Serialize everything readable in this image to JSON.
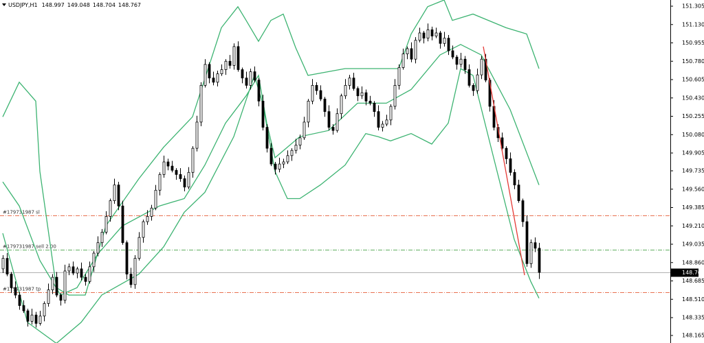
{
  "chart_data": {
    "type": "candlestick",
    "symbol": "USDJPY,H1",
    "ylim": [
      148.093,
      151.364
    ],
    "yticks": [
      151.305,
      {
        "value": 151.13,
        "label": "151.130"
      },
      150.955,
      {
        "value": 150.78,
        "label": "150.780"
      },
      150.605,
      {
        "value": 150.43,
        "label": "150.430"
      },
      150.255,
      {
        "value": 150.08,
        "label": "150.080"
      },
      149.905,
      149.735,
      {
        "value": 149.56,
        "label": "149.560"
      },
      149.385,
      {
        "value": 149.21,
        "label": "149.210"
      },
      149.035,
      {
        "value": 148.86,
        "label": "148.860"
      },
      148.685,
      {
        "value": 148.51,
        "label": "148.510"
      },
      148.335,
      148.165
    ],
    "ohlc": [
      [
        148.8,
        148.93,
        148.76,
        148.9
      ],
      [
        148.9,
        148.95,
        148.73,
        148.75
      ],
      [
        148.75,
        148.77,
        148.57,
        148.62
      ],
      [
        148.62,
        148.68,
        148.52,
        148.55
      ],
      [
        148.55,
        148.58,
        148.41,
        148.45
      ],
      [
        148.45,
        148.5,
        148.38,
        148.4
      ],
      [
        148.4,
        148.42,
        148.25,
        148.3
      ],
      [
        148.3,
        148.42,
        148.27,
        148.36
      ],
      [
        148.36,
        148.39,
        148.24,
        148.28
      ],
      [
        148.28,
        148.4,
        148.26,
        148.35
      ],
      [
        148.35,
        148.49,
        148.3,
        148.47
      ],
      [
        148.47,
        148.66,
        148.44,
        148.6
      ],
      [
        148.6,
        148.75,
        148.56,
        148.72
      ],
      [
        148.72,
        148.77,
        148.53,
        148.55
      ],
      [
        148.55,
        148.57,
        148.45,
        148.5
      ],
      [
        148.5,
        148.84,
        148.47,
        148.78
      ],
      [
        148.78,
        148.85,
        148.74,
        148.82
      ],
      [
        148.82,
        148.87,
        148.74,
        148.76
      ],
      [
        148.76,
        148.82,
        148.71,
        148.8
      ],
      [
        148.8,
        148.86,
        148.69,
        148.72
      ],
      [
        148.72,
        148.75,
        148.64,
        148.68
      ],
      [
        148.68,
        148.87,
        148.66,
        148.82
      ],
      [
        148.82,
        148.97,
        148.77,
        148.95
      ],
      [
        148.95,
        149.11,
        148.92,
        149.05
      ],
      [
        149.05,
        149.18,
        149.01,
        149.15
      ],
      [
        149.15,
        149.35,
        149.13,
        149.3
      ],
      [
        149.3,
        149.47,
        149.25,
        149.45
      ],
      [
        149.45,
        149.66,
        149.42,
        149.6
      ],
      [
        149.6,
        149.63,
        149.36,
        149.4
      ],
      [
        149.4,
        149.45,
        149.03,
        149.05
      ],
      [
        149.05,
        149.07,
        148.7,
        148.75
      ],
      [
        148.75,
        148.81,
        148.62,
        148.65
      ],
      [
        148.65,
        148.93,
        148.61,
        148.9
      ],
      [
        148.9,
        149.15,
        148.88,
        149.1
      ],
      [
        149.1,
        149.27,
        149.05,
        149.25
      ],
      [
        149.25,
        149.36,
        149.22,
        149.3
      ],
      [
        149.3,
        149.41,
        149.26,
        149.38
      ],
      [
        149.38,
        149.6,
        149.36,
        149.55
      ],
      [
        149.55,
        149.72,
        149.5,
        149.7
      ],
      [
        149.7,
        149.88,
        149.67,
        149.82
      ],
      [
        149.82,
        149.85,
        149.74,
        149.78
      ],
      [
        149.78,
        149.83,
        149.72,
        149.74
      ],
      [
        149.74,
        149.76,
        149.65,
        149.7
      ],
      [
        149.7,
        149.76,
        149.63,
        149.66
      ],
      [
        149.66,
        149.69,
        149.54,
        149.58
      ],
      [
        149.58,
        149.77,
        149.56,
        149.72
      ],
      [
        149.72,
        149.97,
        149.67,
        149.95
      ],
      [
        149.95,
        150.26,
        149.92,
        150.2
      ],
      [
        150.2,
        150.58,
        150.16,
        150.55
      ],
      [
        150.55,
        150.8,
        150.53,
        150.75
      ],
      [
        150.75,
        150.77,
        150.57,
        150.62
      ],
      [
        150.62,
        150.68,
        150.55,
        150.58
      ],
      [
        150.58,
        150.69,
        150.54,
        150.66
      ],
      [
        150.66,
        150.75,
        150.64,
        150.7
      ],
      [
        150.7,
        150.8,
        150.65,
        150.78
      ],
      [
        150.78,
        150.84,
        150.71,
        150.74
      ],
      [
        150.74,
        150.95,
        150.7,
        150.92
      ],
      [
        150.92,
        150.97,
        150.68,
        150.7
      ],
      [
        150.7,
        150.72,
        150.57,
        150.62
      ],
      [
        150.62,
        150.68,
        150.52,
        150.55
      ],
      [
        150.55,
        150.71,
        150.51,
        150.68
      ],
      [
        150.68,
        150.73,
        150.58,
        150.6
      ],
      [
        150.6,
        150.62,
        150.35,
        150.4
      ],
      [
        150.4,
        150.46,
        150.12,
        150.15
      ],
      [
        150.15,
        150.18,
        149.91,
        149.95
      ],
      [
        149.95,
        150.0,
        149.78,
        149.8
      ],
      [
        149.8,
        149.82,
        149.7,
        149.75
      ],
      [
        149.75,
        149.86,
        149.72,
        149.8
      ],
      [
        149.8,
        149.85,
        149.76,
        149.82
      ],
      [
        149.82,
        149.93,
        149.8,
        149.88
      ],
      [
        149.88,
        149.95,
        149.83,
        149.93
      ],
      [
        149.93,
        150.04,
        149.9,
        149.98
      ],
      [
        149.98,
        150.08,
        149.94,
        150.05
      ],
      [
        150.05,
        150.25,
        150.03,
        150.2
      ],
      [
        150.2,
        150.42,
        150.15,
        150.4
      ],
      [
        150.4,
        150.61,
        150.37,
        150.55
      ],
      [
        150.55,
        150.58,
        150.46,
        150.5
      ],
      [
        150.5,
        150.55,
        150.4,
        150.42
      ],
      [
        150.42,
        150.44,
        150.25,
        150.3
      ],
      [
        150.3,
        150.36,
        150.12,
        150.15
      ],
      [
        150.15,
        150.18,
        150.08,
        150.12
      ],
      [
        150.12,
        150.33,
        150.1,
        150.28
      ],
      [
        150.28,
        150.47,
        150.23,
        150.45
      ],
      [
        150.45,
        150.61,
        150.42,
        150.55
      ],
      [
        150.55,
        150.65,
        150.51,
        150.62
      ],
      [
        150.62,
        150.67,
        150.5,
        150.52
      ],
      [
        150.52,
        150.54,
        150.4,
        150.45
      ],
      [
        150.45,
        150.54,
        150.42,
        150.48
      ],
      [
        150.48,
        150.51,
        150.36,
        150.4
      ],
      [
        150.4,
        150.45,
        150.36,
        150.38
      ],
      [
        150.38,
        150.4,
        150.25,
        150.3
      ],
      [
        150.3,
        150.36,
        150.12,
        150.15
      ],
      [
        150.15,
        150.21,
        150.11,
        150.18
      ],
      [
        150.18,
        150.27,
        150.16,
        150.22
      ],
      [
        150.22,
        150.37,
        150.17,
        150.35
      ],
      [
        150.35,
        150.61,
        150.32,
        150.55
      ],
      [
        150.55,
        150.75,
        150.51,
        150.72
      ],
      [
        150.72,
        150.9,
        150.7,
        150.85
      ],
      [
        150.85,
        150.92,
        150.8,
        150.9
      ],
      [
        150.9,
        150.96,
        150.77,
        150.8
      ],
      [
        150.8,
        151.01,
        150.76,
        150.98
      ],
      [
        150.98,
        151.1,
        150.96,
        151.05
      ],
      [
        151.05,
        151.07,
        150.95,
        151.0
      ],
      [
        151.0,
        151.14,
        150.97,
        151.08
      ],
      [
        151.08,
        151.11,
        150.98,
        151.02
      ],
      [
        151.02,
        151.1,
        151.0,
        151.05
      ],
      [
        151.05,
        151.07,
        150.9,
        150.95
      ],
      [
        150.95,
        151.06,
        150.92,
        151.0
      ],
      [
        151.0,
        151.03,
        150.84,
        150.88
      ],
      [
        150.88,
        150.93,
        150.8,
        150.82
      ],
      [
        150.82,
        150.84,
        150.7,
        150.75
      ],
      [
        150.75,
        150.86,
        150.72,
        150.8
      ],
      [
        150.8,
        150.83,
        150.66,
        150.7
      ],
      [
        150.7,
        150.75,
        150.53,
        150.55
      ],
      [
        150.55,
        150.57,
        150.45,
        150.5
      ],
      [
        150.5,
        150.71,
        150.47,
        150.65
      ],
      [
        150.65,
        150.83,
        150.61,
        150.8
      ],
      [
        150.8,
        150.85,
        150.58,
        150.6
      ],
      [
        150.6,
        150.62,
        150.3,
        150.35
      ],
      [
        150.35,
        150.41,
        150.12,
        150.15
      ],
      [
        150.15,
        150.18,
        150.01,
        150.05
      ],
      [
        150.05,
        150.1,
        149.93,
        149.95
      ],
      [
        149.95,
        149.97,
        149.8,
        149.85
      ],
      [
        149.85,
        149.91,
        149.69,
        149.72
      ],
      [
        149.72,
        149.75,
        149.56,
        149.6
      ],
      [
        149.6,
        149.65,
        149.43,
        149.45
      ],
      [
        149.45,
        149.47,
        149.2,
        149.25
      ],
      [
        149.25,
        149.31,
        148.82,
        148.85
      ],
      [
        148.85,
        149.08,
        148.81,
        149.05
      ],
      [
        149.05,
        149.1,
        148.96,
        148.997
      ],
      [
        148.997,
        149.048,
        148.704,
        148.767
      ]
    ],
    "candle_colors": {
      "up": "#ffffff",
      "down": "#000000",
      "outline": "#000000"
    },
    "indicators": [
      {
        "color": "#3cb371",
        "x": [
          0,
          4,
          8,
          9,
          13,
          16,
          20,
          25,
          33,
          39,
          46,
          53,
          57,
          59,
          62,
          65,
          68,
          71,
          74,
          83,
          96,
          99,
          103,
          107,
          109,
          114,
          122,
          127,
          130
        ],
        "values": [
          150.25,
          150.58,
          150.4,
          149.73,
          148.62,
          148.55,
          148.55,
          149.21,
          149.66,
          149.96,
          150.25,
          151.1,
          151.3,
          151.17,
          150.97,
          151.17,
          151.23,
          150.91,
          150.645,
          150.71,
          150.71,
          151.04,
          151.3,
          151.364,
          151.17,
          151.23,
          151.1,
          151.04,
          150.71
        ]
      },
      {
        "color": "#3cb371",
        "x": [
          0,
          4,
          9,
          14,
          18,
          23,
          29,
          38,
          44,
          49,
          54,
          59,
          62,
          64,
          66,
          72,
          79,
          86,
          93,
          99,
          106,
          111,
          116,
          123,
          130
        ],
        "values": [
          149.63,
          149.4,
          148.88,
          148.55,
          148.62,
          148.94,
          149.21,
          149.4,
          149.47,
          149.79,
          150.19,
          150.45,
          150.645,
          150.19,
          149.86,
          150.06,
          150.12,
          150.38,
          150.38,
          150.51,
          150.84,
          150.94,
          150.84,
          150.32,
          149.6
        ]
      },
      {
        "color": "#3cb371",
        "x": [
          0,
          6,
          13,
          19,
          24,
          33,
          39,
          44,
          49,
          56,
          61,
          63,
          66,
          69,
          72,
          77,
          83,
          88,
          91,
          94,
          99,
          104,
          108,
          111,
          114,
          119,
          124,
          128,
          130
        ],
        "values": [
          149.14,
          148.29,
          148.09,
          148.29,
          148.55,
          148.75,
          149.01,
          149.34,
          149.53,
          150.06,
          150.645,
          150.38,
          149.73,
          149.47,
          149.47,
          149.6,
          149.79,
          150.09,
          150.06,
          150.02,
          150.09,
          149.99,
          150.19,
          150.71,
          150.645,
          149.86,
          149.08,
          148.68,
          148.52
        ]
      }
    ],
    "trendline": {
      "color": "#e53935",
      "x": [
        116.5,
        126.5
      ],
      "values": [
        150.92,
        148.74
      ]
    },
    "levels": [
      {
        "label": "#179731987 sl",
        "value": 149.31,
        "color": "#e8704f"
      },
      {
        "label": "#179731987 sell 2.00",
        "value": 148.983,
        "color": "#5fae5f"
      },
      {
        "label": "#179731987 tp",
        "value": 148.578,
        "color": "#e8704f"
      }
    ],
    "price_line_color": "#b0b0b0"
  }
}
